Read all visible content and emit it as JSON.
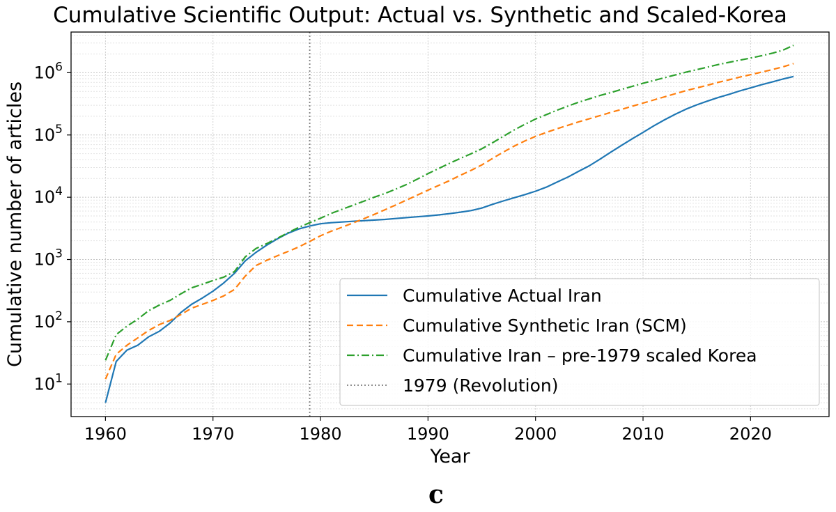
{
  "chart_data": {
    "type": "line",
    "title": "Cumulative Scientific Output: Actual vs. Synthetic and Scaled-Korea",
    "xlabel": "Year",
    "ylabel": "Cumulative number of articles",
    "xlim": [
      1956.8,
      2027.3
    ],
    "ylim": [
      3,
      4500000
    ],
    "y_scale": "log",
    "x_ticks": [
      1960,
      1970,
      1980,
      1990,
      2000,
      2010,
      2020
    ],
    "y_ticks": [
      {
        "value": 10,
        "base": "10",
        "exp": "1"
      },
      {
        "value": 100,
        "base": "10",
        "exp": "2"
      },
      {
        "value": 1000,
        "base": "10",
        "exp": "3"
      },
      {
        "value": 10000,
        "base": "10",
        "exp": "4"
      },
      {
        "value": 100000,
        "base": "10",
        "exp": "5"
      },
      {
        "value": 1000000,
        "base": "10",
        "exp": "6"
      }
    ],
    "grid": true,
    "legend_position": "lower-right",
    "vline": {
      "x": 1979,
      "name": "1979 (Revolution)",
      "color": "#7f7f7f"
    },
    "series": [
      {
        "name": "Cumulative Actual Iran",
        "color": "#1f77b4",
        "style": "solid",
        "x": [
          1960,
          1961,
          1962,
          1963,
          1964,
          1965,
          1966,
          1967,
          1968,
          1969,
          1970,
          1971,
          1972,
          1973,
          1974,
          1975,
          1976,
          1977,
          1978,
          1979,
          1980,
          1981,
          1982,
          1983,
          1984,
          1985,
          1986,
          1987,
          1988,
          1989,
          1990,
          1991,
          1992,
          1993,
          1994,
          1995,
          1996,
          1997,
          1998,
          1999,
          2000,
          2001,
          2002,
          2003,
          2004,
          2005,
          2006,
          2007,
          2008,
          2009,
          2010,
          2011,
          2012,
          2013,
          2014,
          2015,
          2016,
          2017,
          2018,
          2019,
          2020,
          2021,
          2022,
          2023,
          2024
        ],
        "y": [
          5,
          23,
          35,
          42,
          57,
          70,
          95,
          140,
          190,
          240,
          310,
          420,
          600,
          950,
          1300,
          1700,
          2150,
          2650,
          3100,
          3450,
          3750,
          3900,
          4000,
          4100,
          4200,
          4300,
          4400,
          4550,
          4700,
          4850,
          5000,
          5200,
          5450,
          5750,
          6100,
          6700,
          7700,
          8700,
          9800,
          11000,
          12500,
          14500,
          17500,
          21000,
          26000,
          32000,
          41000,
          53000,
          68000,
          87000,
          110000,
          140000,
          175000,
          215000,
          260000,
          305000,
          350000,
          400000,
          450000,
          510000,
          570000,
          640000,
          710000,
          790000,
          870000
        ]
      },
      {
        "name": "Cumulative Synthetic Iran (SCM)",
        "color": "#ff7f0e",
        "style": "dashed",
        "x": [
          1960,
          1961,
          1962,
          1963,
          1964,
          1965,
          1966,
          1967,
          1968,
          1969,
          1970,
          1971,
          1972,
          1973,
          1974,
          1975,
          1976,
          1977,
          1978,
          1979,
          1980,
          1981,
          1982,
          1983,
          1984,
          1985,
          1986,
          1987,
          1988,
          1989,
          1990,
          1991,
          1992,
          1993,
          1994,
          1995,
          1996,
          1997,
          1998,
          1999,
          2000,
          2001,
          2002,
          2003,
          2004,
          2005,
          2006,
          2007,
          2008,
          2009,
          2010,
          2011,
          2012,
          2013,
          2014,
          2015,
          2016,
          2017,
          2018,
          2019,
          2020,
          2021,
          2022,
          2023,
          2024
        ],
        "y": [
          12,
          30,
          42,
          55,
          72,
          90,
          105,
          130,
          165,
          190,
          220,
          260,
          330,
          540,
          800,
          970,
          1150,
          1350,
          1600,
          1950,
          2400,
          2850,
          3300,
          3850,
          4500,
          5300,
          6300,
          7500,
          9000,
          10800,
          13000,
          15500,
          18500,
          22500,
          27000,
          33000,
          42000,
          53000,
          66000,
          80000,
          95000,
          110000,
          126000,
          143000,
          162000,
          182000,
          205000,
          230000,
          258000,
          290000,
          325000,
          365000,
          410000,
          460000,
          515000,
          570000,
          630000,
          700000,
          770000,
          850000,
          930000,
          1020000,
          1120000,
          1240000,
          1400000
        ]
      },
      {
        "name": "Cumulative Iran – pre-1979 scaled Korea",
        "color": "#2ca02c",
        "style": "dashdot",
        "x": [
          1960,
          1961,
          1962,
          1963,
          1964,
          1965,
          1966,
          1967,
          1968,
          1969,
          1970,
          1971,
          1972,
          1973,
          1974,
          1975,
          1976,
          1977,
          1978,
          1979,
          1980,
          1981,
          1982,
          1983,
          1984,
          1985,
          1986,
          1987,
          1988,
          1989,
          1990,
          1991,
          1992,
          1993,
          1994,
          1995,
          1996,
          1997,
          1998,
          1999,
          2000,
          2001,
          2002,
          2003,
          2004,
          2005,
          2006,
          2007,
          2008,
          2009,
          2010,
          2011,
          2012,
          2013,
          2014,
          2015,
          2016,
          2017,
          2018,
          2019,
          2020,
          2021,
          2022,
          2023,
          2024
        ],
        "y": [
          24,
          62,
          85,
          110,
          150,
          185,
          220,
          280,
          350,
          400,
          460,
          520,
          640,
          1100,
          1500,
          1800,
          2200,
          2700,
          3300,
          3900,
          4600,
          5500,
          6400,
          7400,
          8600,
          10000,
          11500,
          13500,
          16000,
          19500,
          24000,
          29000,
          35000,
          42000,
          50000,
          60000,
          75000,
          95000,
          120000,
          148000,
          180000,
          212000,
          250000,
          290000,
          335000,
          380000,
          430000,
          480000,
          540000,
          605000,
          675000,
          750000,
          830000,
          920000,
          1020000,
          1120000,
          1230000,
          1350000,
          1470000,
          1590000,
          1720000,
          1870000,
          2050000,
          2300000,
          2750000
        ]
      }
    ]
  },
  "caption": "c"
}
